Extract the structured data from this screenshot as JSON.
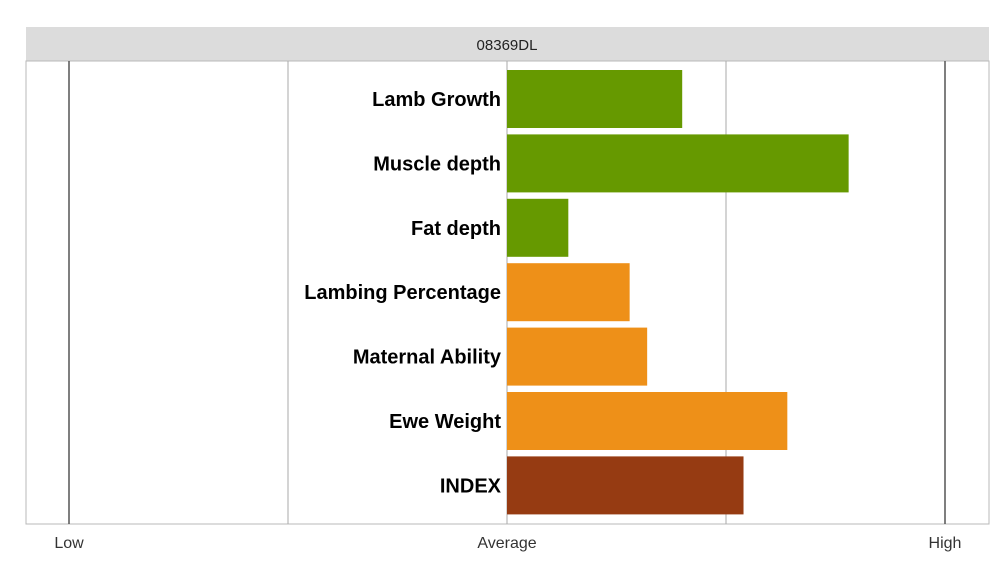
{
  "chart_data": {
    "type": "bar",
    "orientation": "horizontal",
    "title": "08369DL",
    "xlim": [
      -1,
      1
    ],
    "ticks": [
      {
        "value": -1,
        "label": "Low"
      },
      {
        "value": 0,
        "label": "Average"
      },
      {
        "value": 1,
        "label": "High"
      }
    ],
    "gridlines": [
      -1,
      -0.5,
      0,
      0.5,
      1
    ],
    "grid": true,
    "legend": "none",
    "categories": [
      "Lamb Growth",
      "Muscle depth",
      "Fat depth",
      "Lambing Percentage",
      "Maternal Ability",
      "Ewe Weight",
      "INDEX"
    ],
    "values": [
      0.4,
      0.78,
      0.14,
      0.28,
      0.32,
      0.64,
      0.54
    ],
    "colors": [
      "#669900",
      "#669900",
      "#669900",
      "#ee9018",
      "#ee9018",
      "#ee9018",
      "#963b12"
    ]
  }
}
